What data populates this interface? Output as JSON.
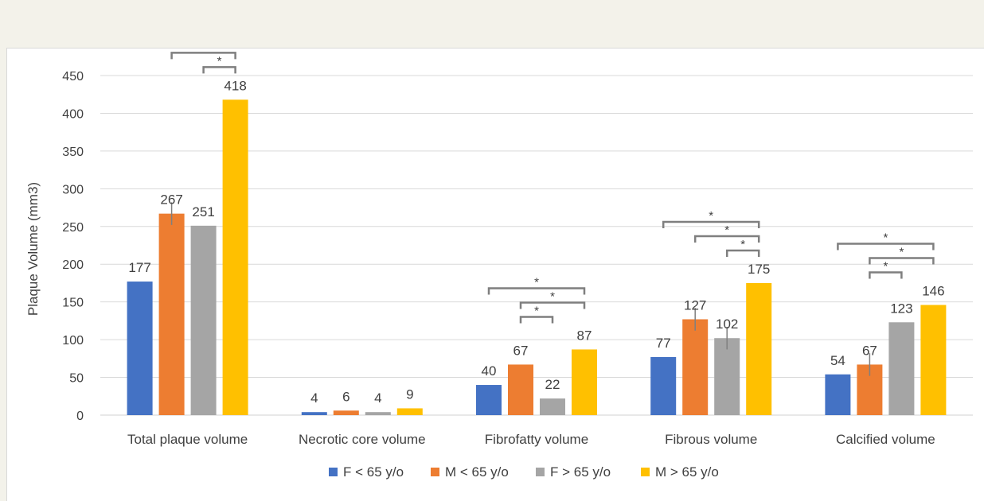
{
  "chart_data": {
    "type": "bar",
    "title": "",
    "xlabel": "",
    "ylabel": "Plaque Volume (mm3)",
    "ylim": [
      0,
      450
    ],
    "yticks": [
      0,
      50,
      100,
      150,
      200,
      250,
      300,
      350,
      400,
      450
    ],
    "grid": true,
    "legend_position": "bottom",
    "categories": [
      "Total plaque volume",
      "Necrotic core volume",
      "Fibrofatty volume",
      "Fibrous volume",
      "Calcified volume"
    ],
    "series": [
      {
        "name": "F < 65 y/o",
        "color": "#4472c4",
        "values": [
          177,
          4,
          40,
          77,
          54
        ]
      },
      {
        "name": "M < 65 y/o",
        "color": "#ed7d31",
        "values": [
          267,
          6,
          67,
          127,
          67
        ]
      },
      {
        "name": "F > 65 y/o",
        "color": "#a5a5a5",
        "values": [
          251,
          4,
          22,
          102,
          123
        ]
      },
      {
        "name": "M > 65 y/o",
        "color": "#ffc000",
        "values": [
          418,
          9,
          87,
          175,
          146
        ]
      }
    ],
    "error_bars": [
      {
        "category": 0,
        "series": 1,
        "low": 252,
        "high": 282
      },
      {
        "category": 3,
        "series": 1,
        "low": 112,
        "high": 142
      },
      {
        "category": 3,
        "series": 2,
        "low": 87,
        "high": 117
      },
      {
        "category": 4,
        "series": 1,
        "low": 52,
        "high": 82
      }
    ],
    "significance": [
      {
        "category": 0,
        "from": 0,
        "to": 3,
        "label": "*"
      },
      {
        "category": 0,
        "from": 1,
        "to": 3,
        "label": "*"
      },
      {
        "category": 0,
        "from": 2,
        "to": 3,
        "label": "*"
      },
      {
        "category": 2,
        "from": 0,
        "to": 3,
        "label": "*"
      },
      {
        "category": 2,
        "from": 1,
        "to": 3,
        "label": "*"
      },
      {
        "category": 2,
        "from": 1,
        "to": 2,
        "label": "*"
      },
      {
        "category": 3,
        "from": 0,
        "to": 3,
        "label": "*"
      },
      {
        "category": 3,
        "from": 1,
        "to": 3,
        "label": "*"
      },
      {
        "category": 3,
        "from": 2,
        "to": 3,
        "label": "*"
      },
      {
        "category": 4,
        "from": 0,
        "to": 3,
        "label": "*"
      },
      {
        "category": 4,
        "from": 1,
        "to": 3,
        "label": "*"
      },
      {
        "category": 4,
        "from": 1,
        "to": 2,
        "label": "*"
      }
    ]
  }
}
